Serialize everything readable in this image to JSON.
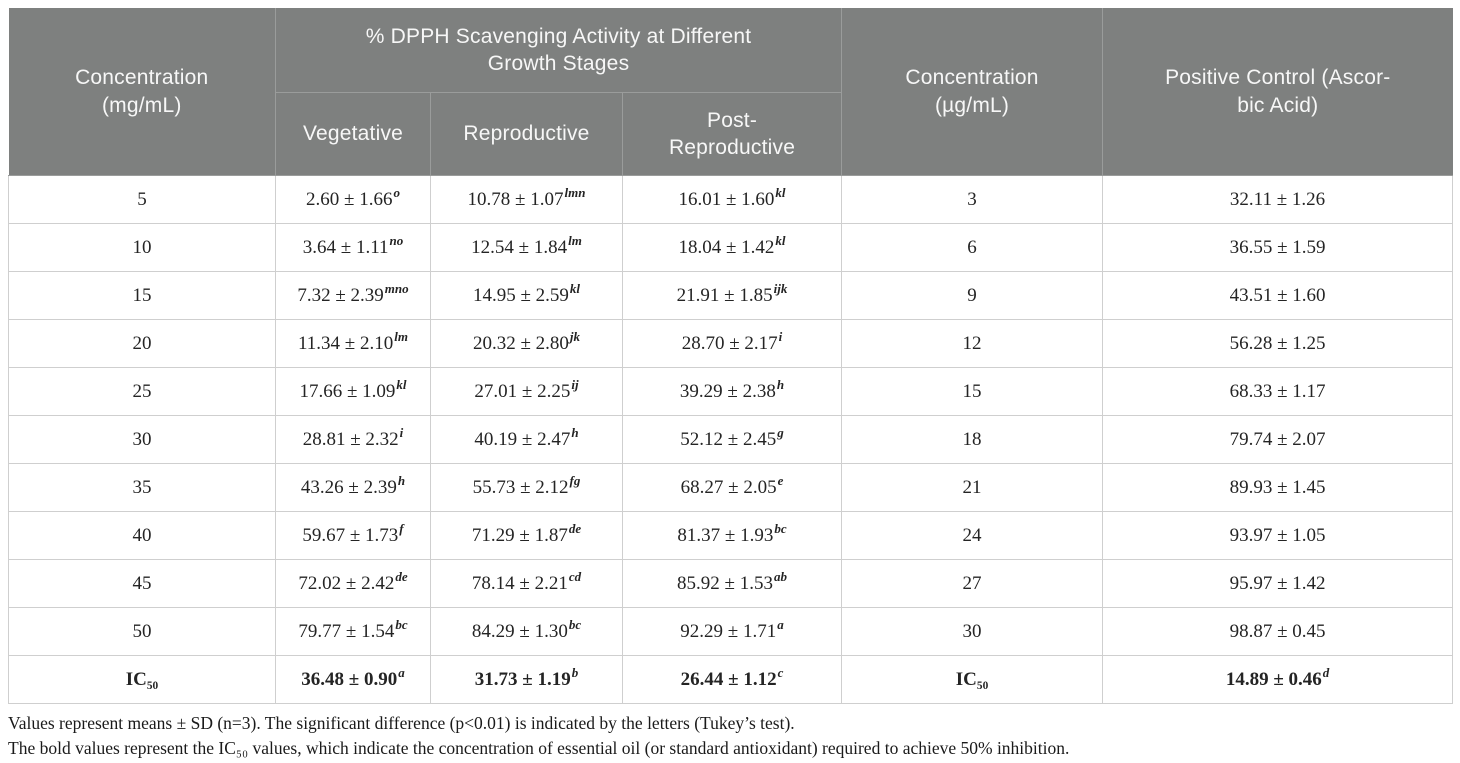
{
  "table": {
    "header": {
      "col_concentration_mg": "Concentration\n(mg/mL)",
      "dpph_span_title": "% DPPH Scavenging Activity at Different\nGrowth Stages",
      "sub_vegetative": "Vegetative",
      "sub_reproductive": "Reproductive",
      "sub_post_reproductive": "Post-\nReproductive",
      "col_concentration_ug": "Concentration\n(µg/mL)",
      "col_positive_control": "Positive Control (Ascor-\nbic Acid)"
    },
    "rows": [
      {
        "conc_mg": "5",
        "vegetative": {
          "v": "2.60 ± 1.66",
          "sup": "o"
        },
        "reproductive": {
          "v": "10.78 ± 1.07",
          "sup": "lmn"
        },
        "post_reproductive": {
          "v": "16.01 ± 1.60",
          "sup": "kl"
        },
        "conc_ug": "3",
        "ascorbic": {
          "v": "32.11 ± 1.26",
          "sup": ""
        },
        "bold": false
      },
      {
        "conc_mg": "10",
        "vegetative": {
          "v": "3.64 ± 1.11",
          "sup": "no"
        },
        "reproductive": {
          "v": "12.54 ± 1.84",
          "sup": "lm"
        },
        "post_reproductive": {
          "v": "18.04 ± 1.42",
          "sup": "kl"
        },
        "conc_ug": "6",
        "ascorbic": {
          "v": "36.55 ± 1.59",
          "sup": ""
        },
        "bold": false
      },
      {
        "conc_mg": "15",
        "vegetative": {
          "v": "7.32 ± 2.39",
          "sup": "mno"
        },
        "reproductive": {
          "v": "14.95 ± 2.59",
          "sup": "kl"
        },
        "post_reproductive": {
          "v": "21.91 ± 1.85",
          "sup": "ijk"
        },
        "conc_ug": "9",
        "ascorbic": {
          "v": "43.51 ± 1.60",
          "sup": ""
        },
        "bold": false
      },
      {
        "conc_mg": "20",
        "vegetative": {
          "v": "11.34 ± 2.10",
          "sup": "lm"
        },
        "reproductive": {
          "v": "20.32 ± 2.80",
          "sup": "jk"
        },
        "post_reproductive": {
          "v": "28.70 ± 2.17",
          "sup": "i"
        },
        "conc_ug": "12",
        "ascorbic": {
          "v": "56.28 ± 1.25",
          "sup": ""
        },
        "bold": false
      },
      {
        "conc_mg": "25",
        "vegetative": {
          "v": "17.66 ± 1.09",
          "sup": "kl"
        },
        "reproductive": {
          "v": "27.01 ± 2.25",
          "sup": "ij"
        },
        "post_reproductive": {
          "v": "39.29 ± 2.38",
          "sup": "h"
        },
        "conc_ug": "15",
        "ascorbic": {
          "v": "68.33 ± 1.17",
          "sup": ""
        },
        "bold": false
      },
      {
        "conc_mg": "30",
        "vegetative": {
          "v": "28.81 ± 2.32",
          "sup": "i"
        },
        "reproductive": {
          "v": "40.19 ± 2.47",
          "sup": "h"
        },
        "post_reproductive": {
          "v": "52.12 ± 2.45",
          "sup": "g"
        },
        "conc_ug": "18",
        "ascorbic": {
          "v": "79.74 ± 2.07",
          "sup": ""
        },
        "bold": false
      },
      {
        "conc_mg": "35",
        "vegetative": {
          "v": "43.26 ± 2.39",
          "sup": "h"
        },
        "reproductive": {
          "v": "55.73 ± 2.12",
          "sup": "fg"
        },
        "post_reproductive": {
          "v": "68.27 ± 2.05",
          "sup": "e"
        },
        "conc_ug": "21",
        "ascorbic": {
          "v": "89.93 ± 1.45",
          "sup": ""
        },
        "bold": false
      },
      {
        "conc_mg": "40",
        "vegetative": {
          "v": "59.67 ± 1.73",
          "sup": "f"
        },
        "reproductive": {
          "v": "71.29 ± 1.87",
          "sup": "de"
        },
        "post_reproductive": {
          "v": "81.37 ± 1.93",
          "sup": "bc"
        },
        "conc_ug": "24",
        "ascorbic": {
          "v": "93.97 ± 1.05",
          "sup": ""
        },
        "bold": false
      },
      {
        "conc_mg": "45",
        "vegetative": {
          "v": "72.02 ± 2.42",
          "sup": "de"
        },
        "reproductive": {
          "v": "78.14 ± 2.21",
          "sup": "cd"
        },
        "post_reproductive": {
          "v": "85.92 ± 1.53",
          "sup": "ab"
        },
        "conc_ug": "27",
        "ascorbic": {
          "v": "95.97 ± 1.42",
          "sup": ""
        },
        "bold": false
      },
      {
        "conc_mg": "50",
        "vegetative": {
          "v": "79.77 ± 1.54",
          "sup": "bc"
        },
        "reproductive": {
          "v": "84.29 ± 1.30",
          "sup": "bc"
        },
        "post_reproductive": {
          "v": "92.29 ± 1.71",
          "sup": "a"
        },
        "conc_ug": "30",
        "ascorbic": {
          "v": "98.87 ± 0.45",
          "sup": ""
        },
        "bold": false
      },
      {
        "conc_mg": "IC₅₀",
        "vegetative": {
          "v": "36.48 ± 0.90",
          "sup": "a"
        },
        "reproductive": {
          "v": "31.73 ± 1.19",
          "sup": "b"
        },
        "post_reproductive": {
          "v": "26.44 ± 1.12",
          "sup": "c"
        },
        "conc_ug": "IC₅₀",
        "ascorbic": {
          "v": "14.89 ± 0.46",
          "sup": "d"
        },
        "bold": true
      }
    ],
    "footnotes": [
      "Values represent means ± SD (n=3). The significant difference (p<0.01) is indicated by the letters (Tukey’s test).",
      "The bold values represent the IC₅₀ values, which indicate the concentration of essential oil (or standard antioxidant) required to achieve 50% inhibition."
    ]
  },
  "colors": {
    "header_bg": "#7e807f",
    "header_text": "#f7f7f7",
    "header_border": "#9a9c9b",
    "body_border": "#cfcfcf",
    "body_text": "#242424"
  }
}
